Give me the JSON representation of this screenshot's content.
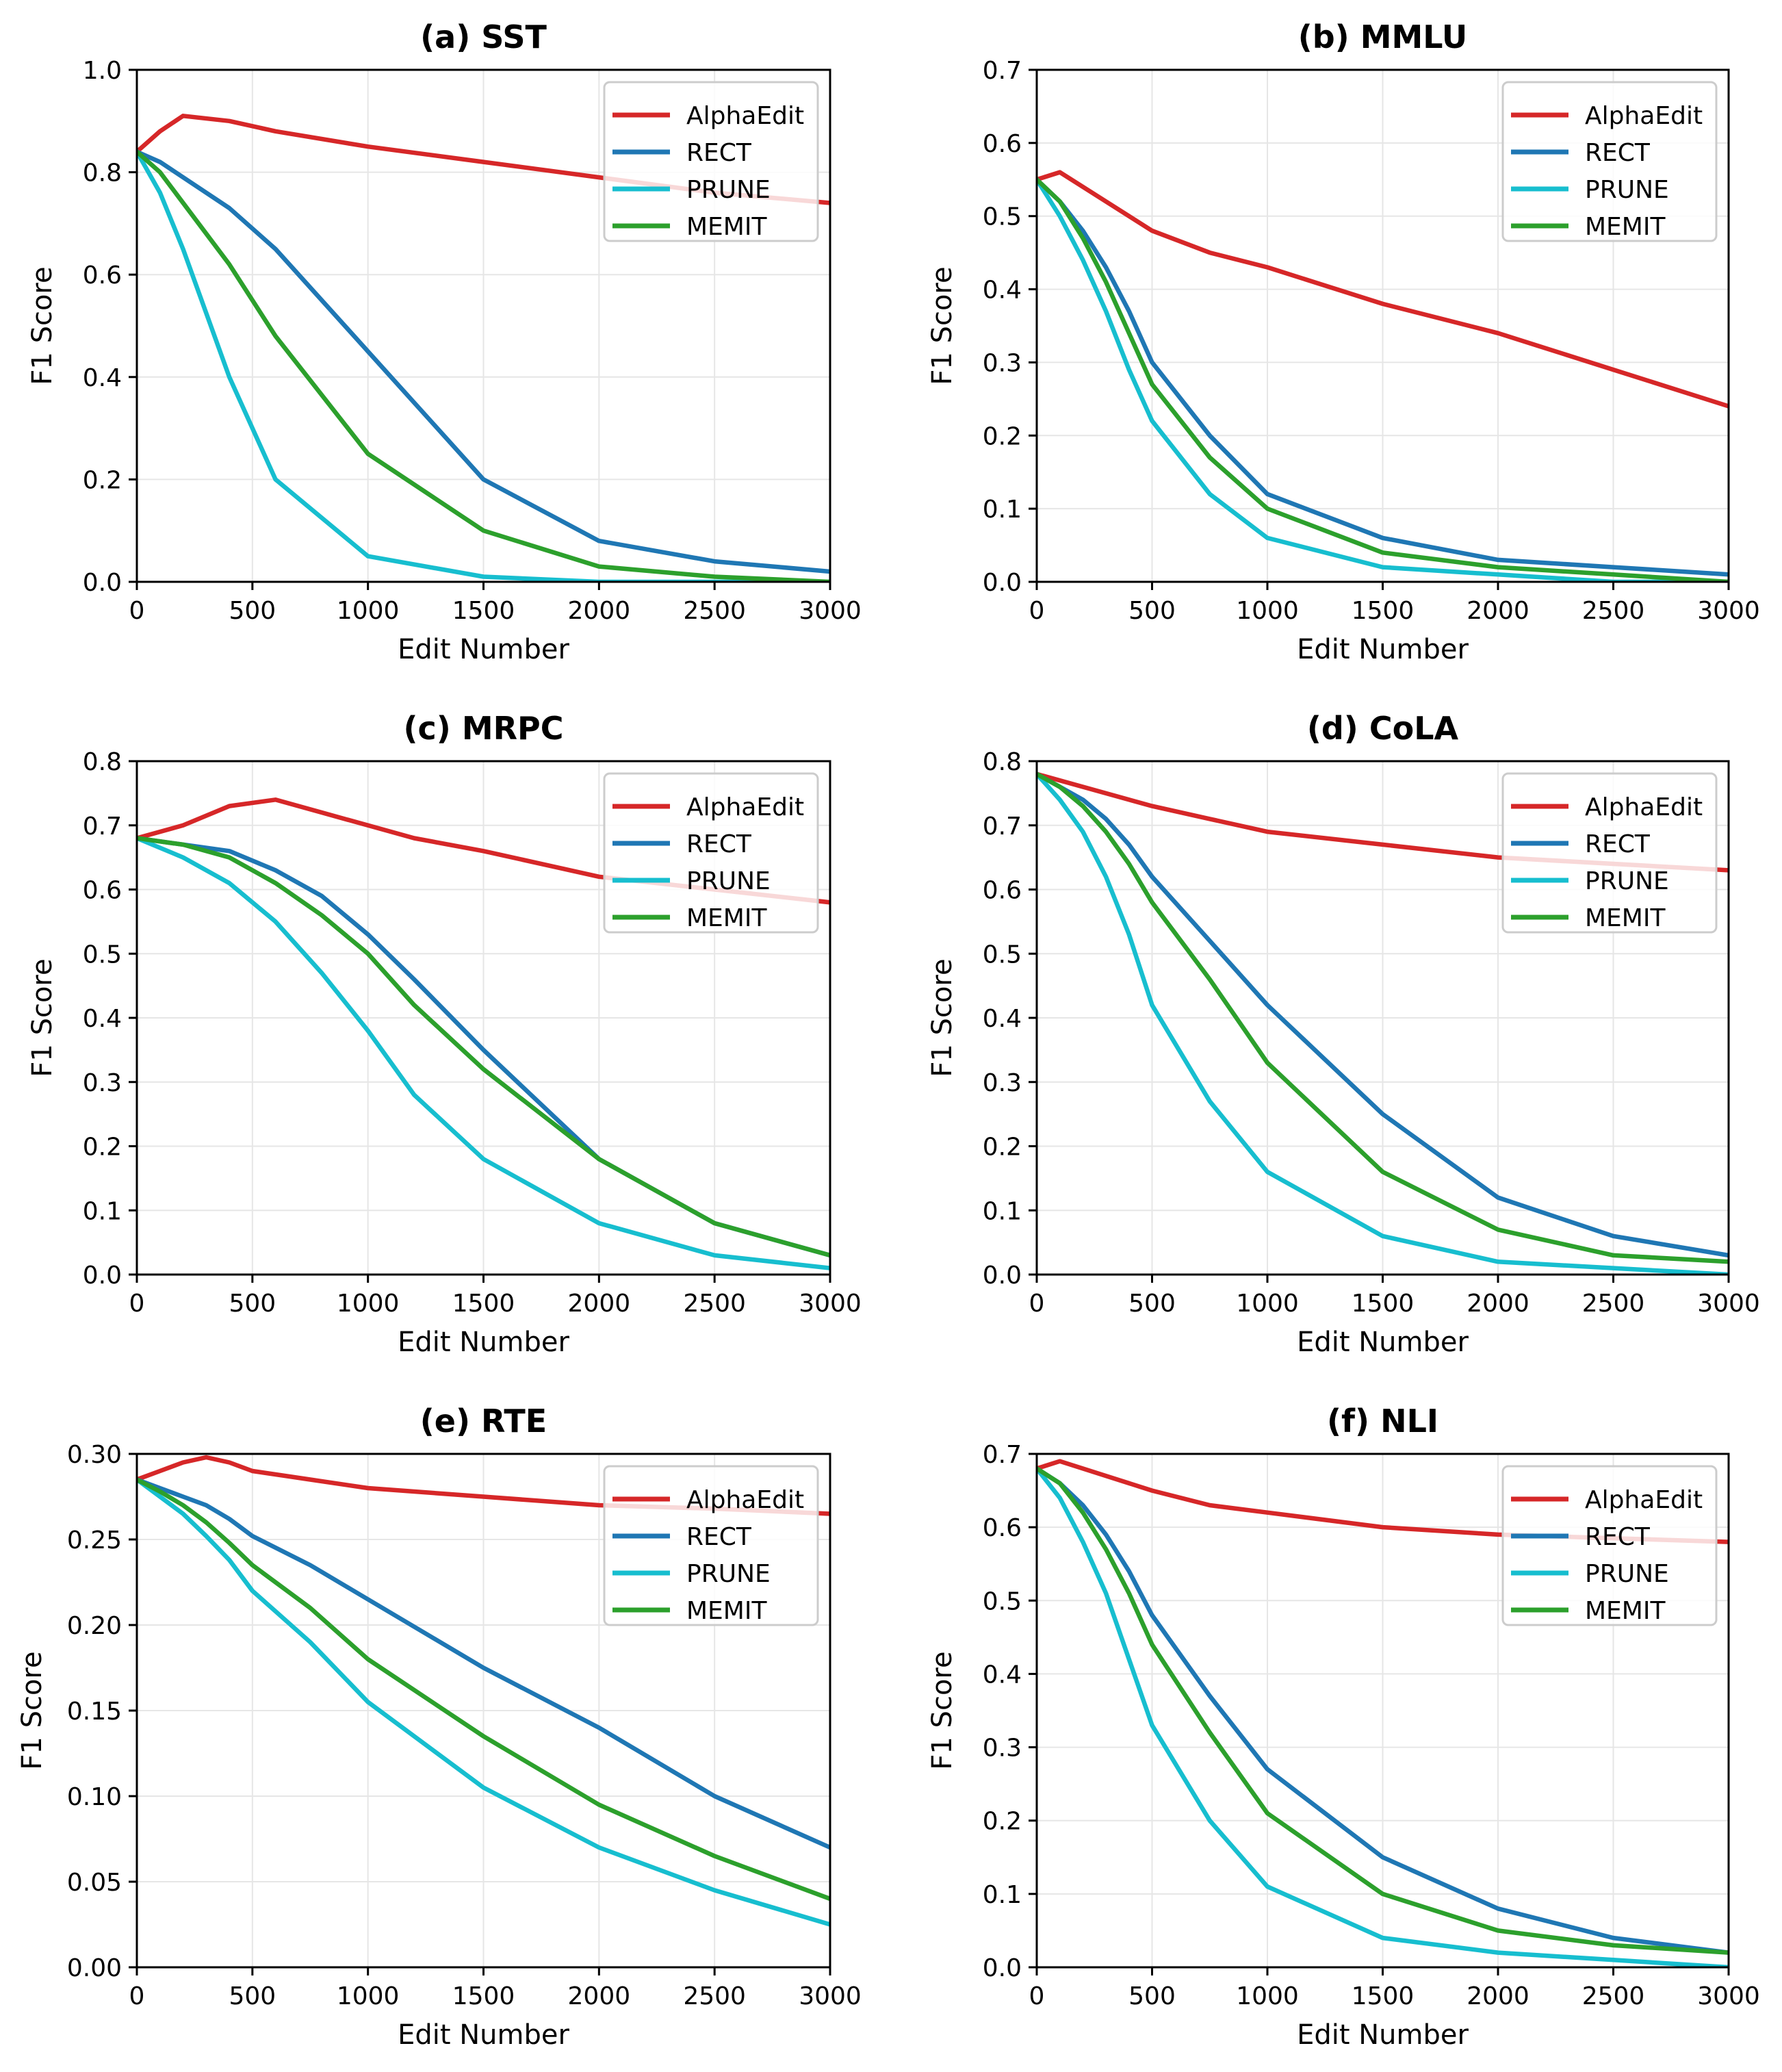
{
  "figure": {
    "series_styles": [
      {
        "name": "AlphaEdit",
        "color": "#d62728"
      },
      {
        "name": "RECT",
        "color": "#1f77b4"
      },
      {
        "name": "PRUNE",
        "color": "#17becf"
      },
      {
        "name": "MEMIT",
        "color": "#2ca02c"
      }
    ]
  },
  "chart_data": [
    {
      "type": "line",
      "title": "(a) SST",
      "xlabel": "Edit Number",
      "ylabel": "F1 Score",
      "xlim": [
        0,
        3000
      ],
      "ylim": [
        0,
        1.0
      ],
      "xticks": [
        0,
        500,
        1000,
        1500,
        2000,
        2500,
        3000
      ],
      "xtick_labels": [
        "0",
        "500",
        "1000",
        "1500",
        "2000",
        "2500",
        "3000"
      ],
      "yticks": [
        0,
        0.2,
        0.4,
        0.6,
        0.8,
        1.0
      ],
      "ytick_labels": [
        "0.0",
        "0.2",
        "0.4",
        "0.6",
        "0.8",
        "1.0"
      ],
      "grid": true,
      "legend": "top-right",
      "series": [
        {
          "name": "AlphaEdit",
          "x": [
            0,
            100,
            200,
            400,
            600,
            1000,
            1500,
            2000,
            2500,
            3000
          ],
          "y": [
            0.84,
            0.88,
            0.91,
            0.9,
            0.88,
            0.85,
            0.82,
            0.79,
            0.76,
            0.74
          ]
        },
        {
          "name": "RECT",
          "x": [
            0,
            100,
            400,
            600,
            1000,
            1500,
            2000,
            2500,
            3000
          ],
          "y": [
            0.84,
            0.82,
            0.73,
            0.65,
            0.45,
            0.2,
            0.08,
            0.04,
            0.02
          ]
        },
        {
          "name": "PRUNE",
          "x": [
            0,
            100,
            200,
            400,
            600,
            1000,
            1500,
            2000,
            2500,
            3000
          ],
          "y": [
            0.84,
            0.76,
            0.65,
            0.4,
            0.2,
            0.05,
            0.01,
            0.0,
            0.0,
            0.0
          ]
        },
        {
          "name": "MEMIT",
          "x": [
            0,
            100,
            400,
            600,
            1000,
            1500,
            2000,
            2500,
            3000
          ],
          "y": [
            0.84,
            0.8,
            0.62,
            0.48,
            0.25,
            0.1,
            0.03,
            0.01,
            0.0
          ]
        }
      ]
    },
    {
      "type": "line",
      "title": "(b) MMLU",
      "xlabel": "Edit Number",
      "ylabel": "F1 Score",
      "xlim": [
        0,
        3000
      ],
      "ylim": [
        0,
        0.7
      ],
      "xticks": [
        0,
        500,
        1000,
        1500,
        2000,
        2500,
        3000
      ],
      "xtick_labels": [
        "0",
        "500",
        "1000",
        "1500",
        "2000",
        "2500",
        "3000"
      ],
      "yticks": [
        0,
        0.1,
        0.2,
        0.3,
        0.4,
        0.5,
        0.6,
        0.7
      ],
      "ytick_labels": [
        "0.0",
        "0.1",
        "0.2",
        "0.3",
        "0.4",
        "0.5",
        "0.6",
        "0.7"
      ],
      "grid": true,
      "legend": "top-right",
      "series": [
        {
          "name": "AlphaEdit",
          "x": [
            0,
            100,
            500,
            750,
            1000,
            1500,
            2000,
            2500,
            3000
          ],
          "y": [
            0.55,
            0.56,
            0.48,
            0.45,
            0.43,
            0.38,
            0.34,
            0.29,
            0.24
          ]
        },
        {
          "name": "RECT",
          "x": [
            0,
            100,
            200,
            300,
            400,
            500,
            750,
            1000,
            1500,
            2000,
            2500,
            3000
          ],
          "y": [
            0.55,
            0.52,
            0.48,
            0.43,
            0.37,
            0.3,
            0.2,
            0.12,
            0.06,
            0.03,
            0.02,
            0.01
          ]
        },
        {
          "name": "PRUNE",
          "x": [
            0,
            100,
            200,
            300,
            400,
            500,
            750,
            1000,
            1500,
            2000,
            2500,
            3000
          ],
          "y": [
            0.55,
            0.5,
            0.44,
            0.37,
            0.29,
            0.22,
            0.12,
            0.06,
            0.02,
            0.01,
            0.0,
            0.0
          ]
        },
        {
          "name": "MEMIT",
          "x": [
            0,
            100,
            200,
            300,
            400,
            500,
            750,
            1000,
            1500,
            2000,
            2500,
            3000
          ],
          "y": [
            0.55,
            0.52,
            0.47,
            0.41,
            0.34,
            0.27,
            0.17,
            0.1,
            0.04,
            0.02,
            0.01,
            0.0
          ]
        }
      ]
    },
    {
      "type": "line",
      "title": "(c) MRPC",
      "xlabel": "Edit Number",
      "ylabel": "F1 Score",
      "xlim": [
        0,
        3000
      ],
      "ylim": [
        0,
        0.8
      ],
      "xticks": [
        0,
        500,
        1000,
        1500,
        2000,
        2500,
        3000
      ],
      "xtick_labels": [
        "0",
        "500",
        "1000",
        "1500",
        "2000",
        "2500",
        "3000"
      ],
      "yticks": [
        0,
        0.1,
        0.2,
        0.3,
        0.4,
        0.5,
        0.6,
        0.7,
        0.8
      ],
      "ytick_labels": [
        "0.0",
        "0.1",
        "0.2",
        "0.3",
        "0.4",
        "0.5",
        "0.6",
        "0.7",
        "0.8"
      ],
      "grid": true,
      "legend": "top-right",
      "series": [
        {
          "name": "AlphaEdit",
          "x": [
            0,
            200,
            400,
            600,
            800,
            1000,
            1200,
            1500,
            2000,
            2500,
            3000
          ],
          "y": [
            0.68,
            0.7,
            0.73,
            0.74,
            0.72,
            0.7,
            0.68,
            0.66,
            0.62,
            0.6,
            0.58
          ]
        },
        {
          "name": "RECT",
          "x": [
            0,
            200,
            400,
            600,
            800,
            1000,
            1200,
            1500,
            2000,
            2500,
            3000
          ],
          "y": [
            0.68,
            0.67,
            0.66,
            0.63,
            0.59,
            0.53,
            0.46,
            0.35,
            0.18,
            0.08,
            0.03
          ]
        },
        {
          "name": "PRUNE",
          "x": [
            0,
            200,
            400,
            600,
            800,
            1000,
            1200,
            1500,
            2000,
            2500,
            3000
          ],
          "y": [
            0.68,
            0.65,
            0.61,
            0.55,
            0.47,
            0.38,
            0.28,
            0.18,
            0.08,
            0.03,
            0.01
          ]
        },
        {
          "name": "MEMIT",
          "x": [
            0,
            200,
            400,
            600,
            800,
            1000,
            1200,
            1500,
            2000,
            2500,
            3000
          ],
          "y": [
            0.68,
            0.67,
            0.65,
            0.61,
            0.56,
            0.5,
            0.42,
            0.32,
            0.18,
            0.08,
            0.03
          ]
        }
      ]
    },
    {
      "type": "line",
      "title": "(d) CoLA",
      "xlabel": "Edit Number",
      "ylabel": "F1 Score",
      "xlim": [
        0,
        3000
      ],
      "ylim": [
        0,
        0.8
      ],
      "xticks": [
        0,
        500,
        1000,
        1500,
        2000,
        2500,
        3000
      ],
      "xtick_labels": [
        "0",
        "500",
        "1000",
        "1500",
        "2000",
        "2500",
        "3000"
      ],
      "yticks": [
        0,
        0.1,
        0.2,
        0.3,
        0.4,
        0.5,
        0.6,
        0.7,
        0.8
      ],
      "ytick_labels": [
        "0.0",
        "0.1",
        "0.2",
        "0.3",
        "0.4",
        "0.5",
        "0.6",
        "0.7",
        "0.8"
      ],
      "grid": true,
      "legend": "top-right",
      "series": [
        {
          "name": "AlphaEdit",
          "x": [
            0,
            500,
            750,
            1000,
            1500,
            2000,
            2500,
            3000
          ],
          "y": [
            0.78,
            0.73,
            0.71,
            0.69,
            0.67,
            0.65,
            0.64,
            0.63
          ]
        },
        {
          "name": "RECT",
          "x": [
            0,
            100,
            200,
            300,
            400,
            500,
            750,
            1000,
            1500,
            2000,
            2500,
            3000
          ],
          "y": [
            0.78,
            0.76,
            0.74,
            0.71,
            0.67,
            0.62,
            0.52,
            0.42,
            0.25,
            0.12,
            0.06,
            0.03
          ]
        },
        {
          "name": "PRUNE",
          "x": [
            0,
            100,
            200,
            300,
            400,
            500,
            750,
            1000,
            1500,
            2000,
            2500,
            3000
          ],
          "y": [
            0.78,
            0.74,
            0.69,
            0.62,
            0.53,
            0.42,
            0.27,
            0.16,
            0.06,
            0.02,
            0.01,
            0.0
          ]
        },
        {
          "name": "MEMIT",
          "x": [
            0,
            100,
            200,
            300,
            400,
            500,
            750,
            1000,
            1500,
            2000,
            2500,
            3000
          ],
          "y": [
            0.78,
            0.76,
            0.73,
            0.69,
            0.64,
            0.58,
            0.46,
            0.33,
            0.16,
            0.07,
            0.03,
            0.02
          ]
        }
      ]
    },
    {
      "type": "line",
      "title": "(e) RTE",
      "xlabel": "Edit Number",
      "ylabel": "F1 Score",
      "xlim": [
        0,
        3000
      ],
      "ylim": [
        0,
        0.3
      ],
      "xticks": [
        0,
        500,
        1000,
        1500,
        2000,
        2500,
        3000
      ],
      "xtick_labels": [
        "0",
        "500",
        "1000",
        "1500",
        "2000",
        "2500",
        "3000"
      ],
      "yticks": [
        0,
        0.05,
        0.1,
        0.15,
        0.2,
        0.25,
        0.3
      ],
      "ytick_labels": [
        "0.00",
        "0.05",
        "0.10",
        "0.15",
        "0.20",
        "0.25",
        "0.30"
      ],
      "grid": true,
      "legend": "top-right",
      "series": [
        {
          "name": "AlphaEdit",
          "x": [
            0,
            100,
            200,
            300,
            400,
            500,
            750,
            1000,
            1500,
            2000,
            2500,
            3000
          ],
          "y": [
            0.285,
            0.29,
            0.295,
            0.298,
            0.295,
            0.29,
            0.285,
            0.28,
            0.275,
            0.27,
            0.268,
            0.265
          ]
        },
        {
          "name": "RECT",
          "x": [
            0,
            100,
            200,
            300,
            400,
            500,
            750,
            1000,
            1500,
            2000,
            2500,
            3000
          ],
          "y": [
            0.285,
            0.28,
            0.275,
            0.27,
            0.262,
            0.252,
            0.235,
            0.215,
            0.175,
            0.14,
            0.1,
            0.07
          ]
        },
        {
          "name": "PRUNE",
          "x": [
            0,
            100,
            200,
            300,
            400,
            500,
            750,
            1000,
            1500,
            2000,
            2500,
            3000
          ],
          "y": [
            0.285,
            0.275,
            0.265,
            0.252,
            0.238,
            0.22,
            0.19,
            0.155,
            0.105,
            0.07,
            0.045,
            0.025
          ]
        },
        {
          "name": "MEMIT",
          "x": [
            0,
            100,
            200,
            300,
            400,
            500,
            750,
            1000,
            1500,
            2000,
            2500,
            3000
          ],
          "y": [
            0.285,
            0.278,
            0.27,
            0.26,
            0.248,
            0.235,
            0.21,
            0.18,
            0.135,
            0.095,
            0.065,
            0.04
          ]
        }
      ]
    },
    {
      "type": "line",
      "title": "(f) NLI",
      "xlabel": "Edit Number",
      "ylabel": "F1 Score",
      "xlim": [
        0,
        3000
      ],
      "ylim": [
        0,
        0.7
      ],
      "xticks": [
        0,
        500,
        1000,
        1500,
        2000,
        2500,
        3000
      ],
      "xtick_labels": [
        "0",
        "500",
        "1000",
        "1500",
        "2000",
        "2500",
        "3000"
      ],
      "yticks": [
        0,
        0.1,
        0.2,
        0.3,
        0.4,
        0.5,
        0.6,
        0.7
      ],
      "ytick_labels": [
        "0.0",
        "0.1",
        "0.2",
        "0.3",
        "0.4",
        "0.5",
        "0.6",
        "0.7"
      ],
      "grid": true,
      "legend": "top-right",
      "series": [
        {
          "name": "AlphaEdit",
          "x": [
            0,
            100,
            500,
            750,
            1000,
            1500,
            2000,
            2500,
            3000
          ],
          "y": [
            0.68,
            0.69,
            0.65,
            0.63,
            0.62,
            0.6,
            0.59,
            0.585,
            0.58
          ]
        },
        {
          "name": "RECT",
          "x": [
            0,
            100,
            200,
            300,
            400,
            500,
            750,
            1000,
            1500,
            2000,
            2500,
            3000
          ],
          "y": [
            0.68,
            0.66,
            0.63,
            0.59,
            0.54,
            0.48,
            0.37,
            0.27,
            0.15,
            0.08,
            0.04,
            0.02
          ]
        },
        {
          "name": "PRUNE",
          "x": [
            0,
            100,
            200,
            300,
            400,
            500,
            750,
            1000,
            1500,
            2000,
            2500,
            3000
          ],
          "y": [
            0.68,
            0.64,
            0.58,
            0.51,
            0.42,
            0.33,
            0.2,
            0.11,
            0.04,
            0.02,
            0.01,
            0.0
          ]
        },
        {
          "name": "MEMIT",
          "x": [
            0,
            100,
            200,
            300,
            400,
            500,
            750,
            1000,
            1500,
            2000,
            2500,
            3000
          ],
          "y": [
            0.68,
            0.66,
            0.62,
            0.57,
            0.51,
            0.44,
            0.32,
            0.21,
            0.1,
            0.05,
            0.03,
            0.02
          ]
        }
      ]
    }
  ]
}
